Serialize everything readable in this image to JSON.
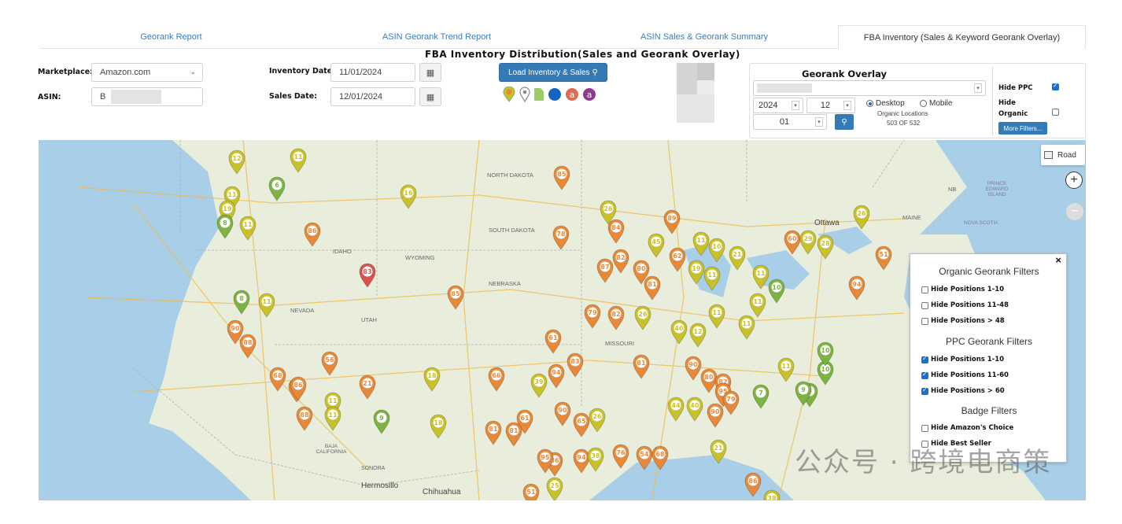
{
  "tabs": [
    {
      "label": "Georank Report"
    },
    {
      "label": "ASIN Georank Trend Report"
    },
    {
      "label": "ASIN Sales & Georank Summary"
    },
    {
      "label": "FBA Inventory (Sales & Keyword Georank Overlay)",
      "active": true
    }
  ],
  "page_title": "FBA Inventory Distribution(Sales and Georank Overlay)",
  "form": {
    "marketplace_label": "Marketplace:",
    "marketplace_value": "Amazon.com",
    "asin_label": "ASIN:",
    "asin_value": "B",
    "inventory_date_label": "Inventory Date",
    "inventory_date_value": "11/01/2024",
    "sales_date_label": "Sales Date:",
    "sales_date_value": "12/01/2024",
    "load_button": "Load Inventory & Sales"
  },
  "legend_icons": [
    "georank-pin-icon",
    "location-pin-icon",
    "inventory-doc-icon",
    "blue-dot-icon",
    "amazon-a-icon",
    "amazon-a-purple-icon"
  ],
  "overlay": {
    "title": "Georank Overlay",
    "keyword_placeholder": "",
    "year": "2024",
    "month": "12",
    "day": "01",
    "device_desktop": "Desktop",
    "device_mobile": "Mobile",
    "organic_locations_label": "Organic Locations",
    "organic_locations_count": "503 OF 532",
    "hide_ppc_label": "Hide PPC",
    "hide_ppc_checked": true,
    "hide_organic_label": "Hide Organic",
    "hide_organic_checked": false,
    "more_filters_button": "More Filters..."
  },
  "map": {
    "road_label": "Road",
    "zoom_in": "+",
    "zoom_out": "−",
    "labels": [
      {
        "text": "NORTH DAKOTA"
      },
      {
        "text": "SOUTH DAKOTA"
      },
      {
        "text": "NEBRASKA"
      },
      {
        "text": "WYOMING"
      },
      {
        "text": "IDAHO"
      },
      {
        "text": "NEVADA"
      },
      {
        "text": "UTAH"
      },
      {
        "text": "MISSOURI"
      },
      {
        "text": "Ottawa"
      },
      {
        "text": "MAINE"
      },
      {
        "text": "NB"
      },
      {
        "text": "PRINCE EDWARD ISLAND"
      },
      {
        "text": "NOVA SCOTIA"
      },
      {
        "text": "SONORA"
      },
      {
        "text": "Hermosillo"
      },
      {
        "text": "Chihuahua"
      },
      {
        "text": "BAJA CALIFORNIA"
      }
    ],
    "colors": {
      "green": "#7cb342",
      "yellow": "#c9c12c",
      "orange": "#e8893a",
      "red": "#d9534f"
    },
    "pins": [
      {
        "n": "12",
        "c": "yellow"
      },
      {
        "n": "11",
        "c": "yellow"
      },
      {
        "n": "6",
        "c": "green"
      },
      {
        "n": "16",
        "c": "yellow"
      },
      {
        "n": "85",
        "c": "orange"
      },
      {
        "n": "11",
        "c": "yellow"
      },
      {
        "n": "19",
        "c": "yellow"
      },
      {
        "n": "8",
        "c": "green"
      },
      {
        "n": "11",
        "c": "yellow"
      },
      {
        "n": "86",
        "c": "orange"
      },
      {
        "n": "78",
        "c": "orange"
      },
      {
        "n": "26",
        "c": "yellow"
      },
      {
        "n": "89",
        "c": "orange"
      },
      {
        "n": "84",
        "c": "orange"
      },
      {
        "n": "45",
        "c": "yellow"
      },
      {
        "n": "62",
        "c": "orange"
      },
      {
        "n": "11",
        "c": "yellow"
      },
      {
        "n": "10",
        "c": "yellow"
      },
      {
        "n": "21",
        "c": "yellow"
      },
      {
        "n": "60",
        "c": "orange"
      },
      {
        "n": "29",
        "c": "yellow"
      },
      {
        "n": "28",
        "c": "yellow"
      },
      {
        "n": "26",
        "c": "yellow"
      },
      {
        "n": "51",
        "c": "orange"
      },
      {
        "n": "83",
        "c": "red"
      },
      {
        "n": "85",
        "c": "orange"
      },
      {
        "n": "87",
        "c": "orange"
      },
      {
        "n": "82",
        "c": "orange"
      },
      {
        "n": "80",
        "c": "orange"
      },
      {
        "n": "81",
        "c": "orange"
      },
      {
        "n": "19",
        "c": "yellow"
      },
      {
        "n": "11",
        "c": "yellow"
      },
      {
        "n": "11",
        "c": "yellow"
      },
      {
        "n": "10",
        "c": "green"
      },
      {
        "n": "94",
        "c": "orange"
      },
      {
        "n": "8",
        "c": "green"
      },
      {
        "n": "11",
        "c": "yellow"
      },
      {
        "n": "90",
        "c": "orange"
      },
      {
        "n": "88",
        "c": "orange"
      },
      {
        "n": "86",
        "c": "orange"
      },
      {
        "n": "79",
        "c": "orange"
      },
      {
        "n": "82",
        "c": "orange"
      },
      {
        "n": "26",
        "c": "yellow"
      },
      {
        "n": "40",
        "c": "yellow"
      },
      {
        "n": "12",
        "c": "yellow"
      },
      {
        "n": "11",
        "c": "yellow"
      },
      {
        "n": "11",
        "c": "yellow"
      },
      {
        "n": "11",
        "c": "yellow"
      },
      {
        "n": "56",
        "c": "orange"
      },
      {
        "n": "61",
        "c": "orange"
      },
      {
        "n": "83",
        "c": "orange"
      },
      {
        "n": "81",
        "c": "orange"
      },
      {
        "n": "90",
        "c": "orange"
      },
      {
        "n": "80",
        "c": "orange"
      },
      {
        "n": "11",
        "c": "yellow"
      },
      {
        "n": "10",
        "c": "green"
      },
      {
        "n": "9",
        "c": "green"
      },
      {
        "n": "10",
        "c": "green"
      },
      {
        "n": "68",
        "c": "orange"
      },
      {
        "n": "86",
        "c": "orange"
      },
      {
        "n": "11",
        "c": "yellow"
      },
      {
        "n": "18",
        "c": "yellow"
      },
      {
        "n": "66",
        "c": "orange"
      },
      {
        "n": "94",
        "c": "orange"
      },
      {
        "n": "82",
        "c": "orange"
      },
      {
        "n": "95",
        "c": "orange"
      },
      {
        "n": "79",
        "c": "orange"
      },
      {
        "n": "7",
        "c": "green"
      },
      {
        "n": "9",
        "c": "green"
      },
      {
        "n": "88",
        "c": "orange"
      },
      {
        "n": "11",
        "c": "yellow"
      },
      {
        "n": "21",
        "c": "orange"
      },
      {
        "n": "9",
        "c": "green"
      },
      {
        "n": "18",
        "c": "yellow"
      },
      {
        "n": "39",
        "c": "yellow"
      },
      {
        "n": "61",
        "c": "orange"
      },
      {
        "n": "81",
        "c": "orange"
      },
      {
        "n": "81",
        "c": "orange"
      },
      {
        "n": "90",
        "c": "orange"
      },
      {
        "n": "65",
        "c": "orange"
      },
      {
        "n": "26",
        "c": "yellow"
      },
      {
        "n": "44",
        "c": "yellow"
      },
      {
        "n": "40",
        "c": "yellow"
      },
      {
        "n": "90",
        "c": "orange"
      },
      {
        "n": "86",
        "c": "orange"
      },
      {
        "n": "95",
        "c": "orange"
      },
      {
        "n": "94",
        "c": "orange"
      },
      {
        "n": "38",
        "c": "yellow"
      },
      {
        "n": "76",
        "c": "orange"
      },
      {
        "n": "54",
        "c": "orange"
      },
      {
        "n": "68",
        "c": "orange"
      },
      {
        "n": "21",
        "c": "yellow"
      },
      {
        "n": "51",
        "c": "orange"
      },
      {
        "n": "25",
        "c": "yellow"
      },
      {
        "n": "86",
        "c": "orange"
      },
      {
        "n": "38",
        "c": "yellow"
      }
    ]
  },
  "filters": {
    "close": "×",
    "organic_title": "Organic Georank Filters",
    "organic": [
      {
        "label": "Hide Positions 1-10",
        "checked": false
      },
      {
        "label": "Hide Positions 11-48",
        "checked": false
      },
      {
        "label": "Hide Positions > 48",
        "checked": false
      }
    ],
    "ppc_title": "PPC Georank Filters",
    "ppc": [
      {
        "label": "Hide Positions 1-10",
        "checked": true
      },
      {
        "label": "Hide Positions 11-60",
        "checked": true
      },
      {
        "label": "Hide Positions > 60",
        "checked": true
      }
    ],
    "badge_title": "Badge Filters",
    "badge": [
      {
        "label": "Hide Amazon's Choice",
        "checked": false
      },
      {
        "label": "Hide Best Seller",
        "checked": false
      }
    ]
  },
  "watermark": "公众号 · 跨境电商策"
}
